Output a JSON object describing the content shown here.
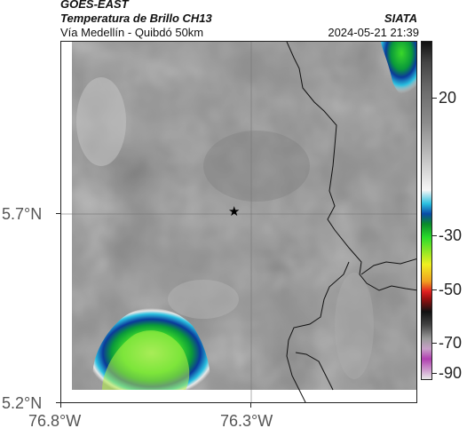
{
  "header": {
    "satellite": "GOES-EAST",
    "product": "Temperatura de Brillo CH13",
    "region": "Vía Medellín - Quibdó 50km",
    "agency": "SIATA",
    "datetime": "2024-05-21 21:39"
  },
  "map": {
    "lat_ticks": [
      "5.7°N",
      "5.2°N"
    ],
    "lon_ticks": [
      "76.8°W",
      "76.3°W"
    ],
    "marker": "star-icon",
    "colors": {
      "cloud_free_gray": "#8c8c8c",
      "cold_blue": "#0a3a9a",
      "cold_cyan": "#2ac0e0",
      "cold_green": "#2adc2a",
      "cold_yellowgreen": "#a8f040"
    }
  },
  "colorbar": {
    "ticks": [
      "20",
      "-30",
      "-50",
      "-70",
      "-90"
    ]
  }
}
